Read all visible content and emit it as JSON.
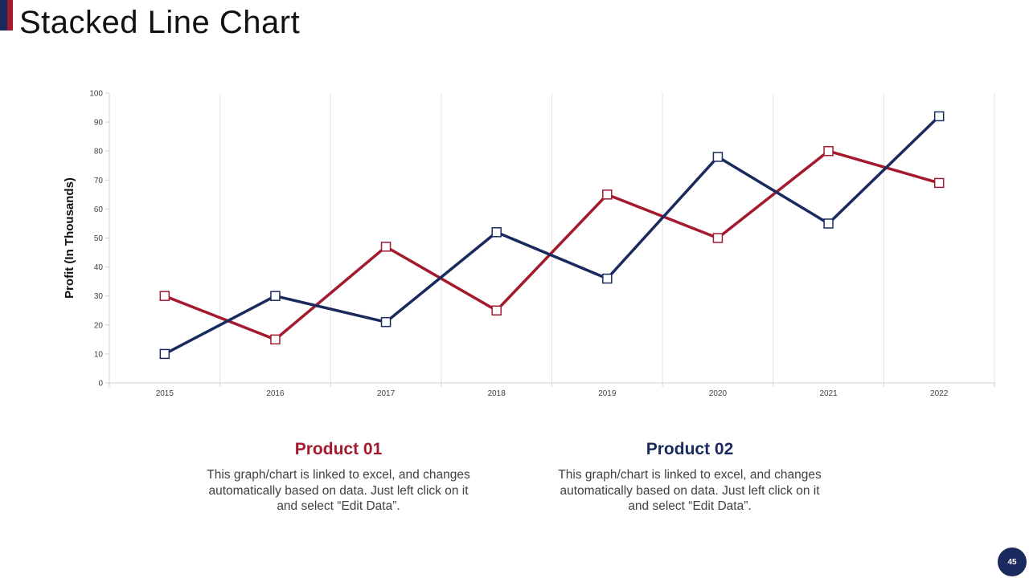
{
  "slide": {
    "title": "Stacked Line Chart",
    "page_number": "45"
  },
  "colors": {
    "product1": "#a31a2e",
    "product2": "#1b2a5e",
    "grid": "#e4e4e4",
    "axis": "#d0d0d0",
    "text": "#404040"
  },
  "products": [
    {
      "name": "Product 01",
      "description": "This graph/chart is linked to excel, and changes automatically based on data. Just left click on it and select “Edit Data”."
    },
    {
      "name": "Product 02",
      "description": "This graph/chart is linked to excel, and changes automatically based on data. Just left click on it and select “Edit Data”."
    }
  ],
  "chart_data": {
    "type": "line",
    "title": "",
    "xlabel": "",
    "ylabel": "Profit (In Thousands)",
    "categories": [
      "2015",
      "2016",
      "2017",
      "2018",
      "2019",
      "2020",
      "2021",
      "2022"
    ],
    "ylim": [
      0,
      100
    ],
    "yticks": [
      0,
      10,
      20,
      30,
      40,
      50,
      60,
      70,
      80,
      90,
      100
    ],
    "grid": true,
    "marker": "square",
    "series": [
      {
        "name": "Product 01",
        "color": "#a31a2e",
        "values": [
          30,
          15,
          47,
          25,
          65,
          50,
          80,
          69
        ]
      },
      {
        "name": "Product 02",
        "color": "#1b2a5e",
        "values": [
          10,
          30,
          21,
          52,
          36,
          78,
          55,
          92
        ]
      }
    ]
  }
}
